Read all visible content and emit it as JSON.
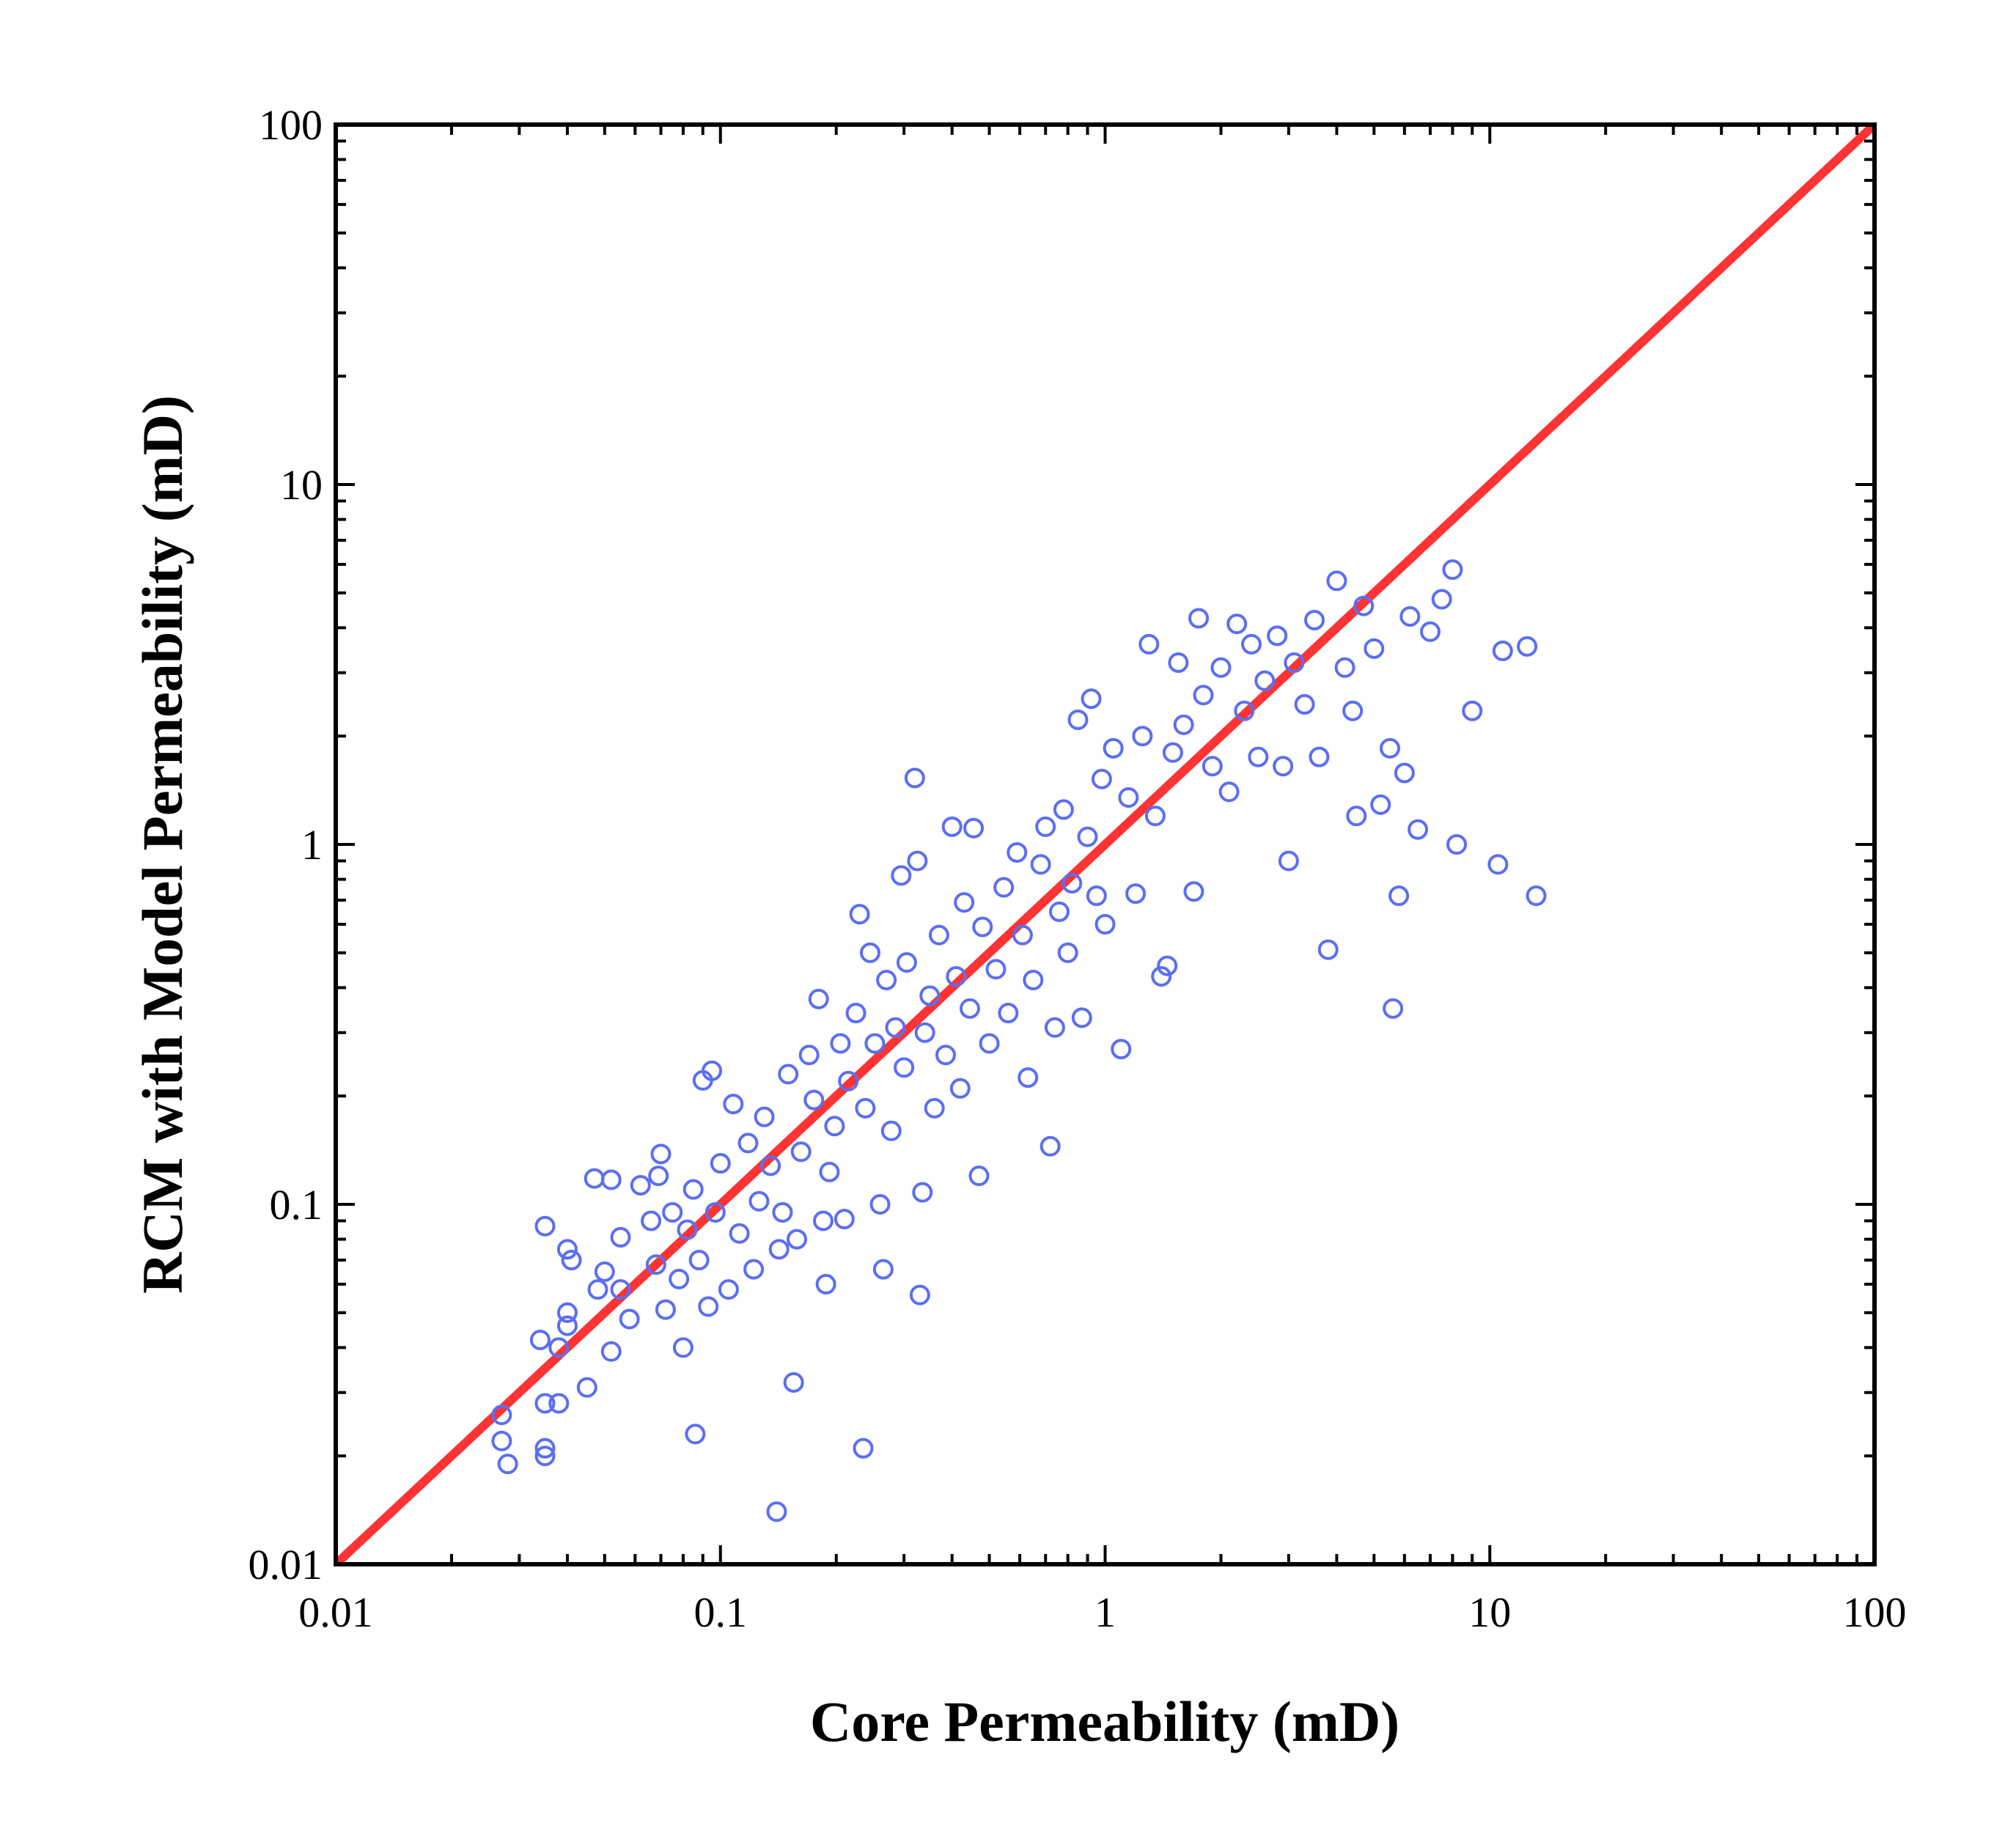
{
  "chart_data": {
    "type": "scatter",
    "title": "",
    "xlabel": "Core Permeability (mD)",
    "ylabel": "RCM with Model Permeability (mD)",
    "xscale": "log",
    "yscale": "log",
    "xlim": [
      0.01,
      100
    ],
    "ylim": [
      0.01,
      100
    ],
    "xticks": [
      0.01,
      0.1,
      1,
      10,
      100
    ],
    "yticks": [
      0.01,
      0.1,
      1,
      10,
      100
    ],
    "xtick_labels": [
      "0.01",
      "0.1",
      "1",
      "10",
      "100"
    ],
    "ytick_labels": [
      "0.01",
      "0.1",
      "1",
      "10",
      "100"
    ],
    "grid": false,
    "legend": "none",
    "colors": {
      "points": "#5b6ef5",
      "reference_line": "#ff3333",
      "axes": "#000000"
    },
    "reference_line": {
      "type": "y=x",
      "x": [
        0.01,
        100
      ],
      "y": [
        0.01,
        100
      ]
    },
    "series": [
      {
        "marker": "open-circle",
        "points": [
          [
            0.027,
            0.026
          ],
          [
            0.027,
            0.022
          ],
          [
            0.028,
            0.019
          ],
          [
            0.035,
            0.028
          ],
          [
            0.035,
            0.021
          ],
          [
            0.035,
            0.02
          ],
          [
            0.038,
            0.028
          ],
          [
            0.034,
            0.042
          ],
          [
            0.035,
            0.087
          ],
          [
            0.038,
            0.04
          ],
          [
            0.04,
            0.05
          ],
          [
            0.04,
            0.046
          ],
          [
            0.041,
            0.07
          ],
          [
            0.04,
            0.075
          ],
          [
            0.045,
            0.031
          ],
          [
            0.047,
            0.118
          ],
          [
            0.048,
            0.058
          ],
          [
            0.05,
            0.065
          ],
          [
            0.052,
            0.117
          ],
          [
            0.052,
            0.039
          ],
          [
            0.055,
            0.058
          ],
          [
            0.055,
            0.081
          ],
          [
            0.058,
            0.048
          ],
          [
            0.062,
            0.113
          ],
          [
            0.066,
            0.09
          ],
          [
            0.068,
            0.068
          ],
          [
            0.069,
            0.12
          ],
          [
            0.07,
            0.138
          ],
          [
            0.072,
            0.051
          ],
          [
            0.075,
            0.095
          ],
          [
            0.078,
            0.062
          ],
          [
            0.08,
            0.04
          ],
          [
            0.082,
            0.085
          ],
          [
            0.085,
            0.11
          ],
          [
            0.086,
            0.023
          ],
          [
            0.088,
            0.07
          ],
          [
            0.09,
            0.221
          ],
          [
            0.093,
            0.052
          ],
          [
            0.095,
            0.235
          ],
          [
            0.097,
            0.095
          ],
          [
            0.1,
            0.13
          ],
          [
            0.105,
            0.058
          ],
          [
            0.108,
            0.19
          ],
          [
            0.112,
            0.083
          ],
          [
            0.118,
            0.148
          ],
          [
            0.122,
            0.066
          ],
          [
            0.126,
            0.102
          ],
          [
            0.13,
            0.175
          ],
          [
            0.135,
            0.128
          ],
          [
            0.14,
            0.014
          ],
          [
            0.142,
            0.075
          ],
          [
            0.145,
            0.095
          ],
          [
            0.15,
            0.23
          ],
          [
            0.155,
            0.032
          ],
          [
            0.158,
            0.08
          ],
          [
            0.162,
            0.14
          ],
          [
            0.17,
            0.26
          ],
          [
            0.175,
            0.195
          ],
          [
            0.18,
            0.372
          ],
          [
            0.185,
            0.09
          ],
          [
            0.188,
            0.06
          ],
          [
            0.192,
            0.123
          ],
          [
            0.198,
            0.165
          ],
          [
            0.205,
            0.28
          ],
          [
            0.21,
            0.091
          ],
          [
            0.215,
            0.22
          ],
          [
            0.225,
            0.34
          ],
          [
            0.23,
            0.64
          ],
          [
            0.235,
            0.021
          ],
          [
            0.238,
            0.185
          ],
          [
            0.245,
            0.5
          ],
          [
            0.252,
            0.28
          ],
          [
            0.26,
            0.1
          ],
          [
            0.265,
            0.066
          ],
          [
            0.27,
            0.42
          ],
          [
            0.278,
            0.16
          ],
          [
            0.285,
            0.31
          ],
          [
            0.295,
            0.82
          ],
          [
            0.3,
            0.24
          ],
          [
            0.305,
            0.47
          ],
          [
            0.32,
            1.53
          ],
          [
            0.325,
            0.9
          ],
          [
            0.33,
            0.056
          ],
          [
            0.335,
            0.108
          ],
          [
            0.34,
            0.3
          ],
          [
            0.35,
            0.38
          ],
          [
            0.36,
            0.185
          ],
          [
            0.37,
            0.56
          ],
          [
            0.385,
            0.26
          ],
          [
            0.4,
            1.12
          ],
          [
            0.41,
            0.43
          ],
          [
            0.42,
            0.21
          ],
          [
            0.43,
            0.69
          ],
          [
            0.445,
            0.35
          ],
          [
            0.455,
            1.11
          ],
          [
            0.47,
            0.12
          ],
          [
            0.48,
            0.59
          ],
          [
            0.5,
            0.28
          ],
          [
            0.52,
            0.45
          ],
          [
            0.545,
            0.76
          ],
          [
            0.56,
            0.34
          ],
          [
            0.59,
            0.95
          ],
          [
            0.61,
            0.56
          ],
          [
            0.63,
            0.225
          ],
          [
            0.65,
            0.42
          ],
          [
            0.68,
            0.88
          ],
          [
            0.7,
            1.12
          ],
          [
            0.72,
            0.145
          ],
          [
            0.74,
            0.31
          ],
          [
            0.76,
            0.65
          ],
          [
            0.78,
            1.25
          ],
          [
            0.8,
            0.5
          ],
          [
            0.82,
            0.78
          ],
          [
            0.85,
            2.22
          ],
          [
            0.87,
            0.33
          ],
          [
            0.9,
            1.05
          ],
          [
            0.92,
            2.54
          ],
          [
            0.95,
            0.72
          ],
          [
            0.98,
            1.52
          ],
          [
            1.0,
            0.6
          ],
          [
            1.05,
            1.85
          ],
          [
            1.1,
            0.27
          ],
          [
            1.15,
            1.35
          ],
          [
            1.2,
            0.73
          ],
          [
            1.25,
            2.0
          ],
          [
            1.3,
            3.6
          ],
          [
            1.35,
            1.2
          ],
          [
            1.4,
            0.43
          ],
          [
            1.45,
            0.46
          ],
          [
            1.5,
            1.8
          ],
          [
            1.55,
            3.2
          ],
          [
            1.6,
            2.15
          ],
          [
            1.7,
            0.74
          ],
          [
            1.75,
            4.25
          ],
          [
            1.8,
            2.6
          ],
          [
            1.9,
            1.65
          ],
          [
            2.0,
            3.1
          ],
          [
            2.1,
            1.4
          ],
          [
            2.2,
            4.1
          ],
          [
            2.3,
            2.35
          ],
          [
            2.4,
            3.6
          ],
          [
            2.5,
            1.75
          ],
          [
            2.6,
            2.85
          ],
          [
            2.8,
            3.8
          ],
          [
            2.9,
            1.65
          ],
          [
            3.0,
            0.9
          ],
          [
            3.1,
            3.2
          ],
          [
            3.3,
            2.45
          ],
          [
            3.5,
            4.2
          ],
          [
            3.6,
            1.75
          ],
          [
            3.8,
            0.51
          ],
          [
            4.0,
            5.4
          ],
          [
            4.2,
            3.1
          ],
          [
            4.4,
            2.35
          ],
          [
            4.5,
            1.2
          ],
          [
            4.7,
            4.6
          ],
          [
            5.0,
            3.5
          ],
          [
            5.2,
            1.29
          ],
          [
            5.5,
            1.85
          ],
          [
            5.6,
            0.35
          ],
          [
            5.8,
            0.72
          ],
          [
            6.0,
            1.58
          ],
          [
            6.2,
            4.3
          ],
          [
            6.5,
            1.1
          ],
          [
            7.0,
            3.9
          ],
          [
            7.5,
            4.8
          ],
          [
            8.0,
            5.8
          ],
          [
            8.2,
            1.0
          ],
          [
            9.0,
            2.35
          ],
          [
            10.5,
            0.88
          ],
          [
            10.8,
            3.45
          ],
          [
            12.5,
            3.55
          ],
          [
            13.2,
            0.72
          ]
        ]
      }
    ]
  }
}
